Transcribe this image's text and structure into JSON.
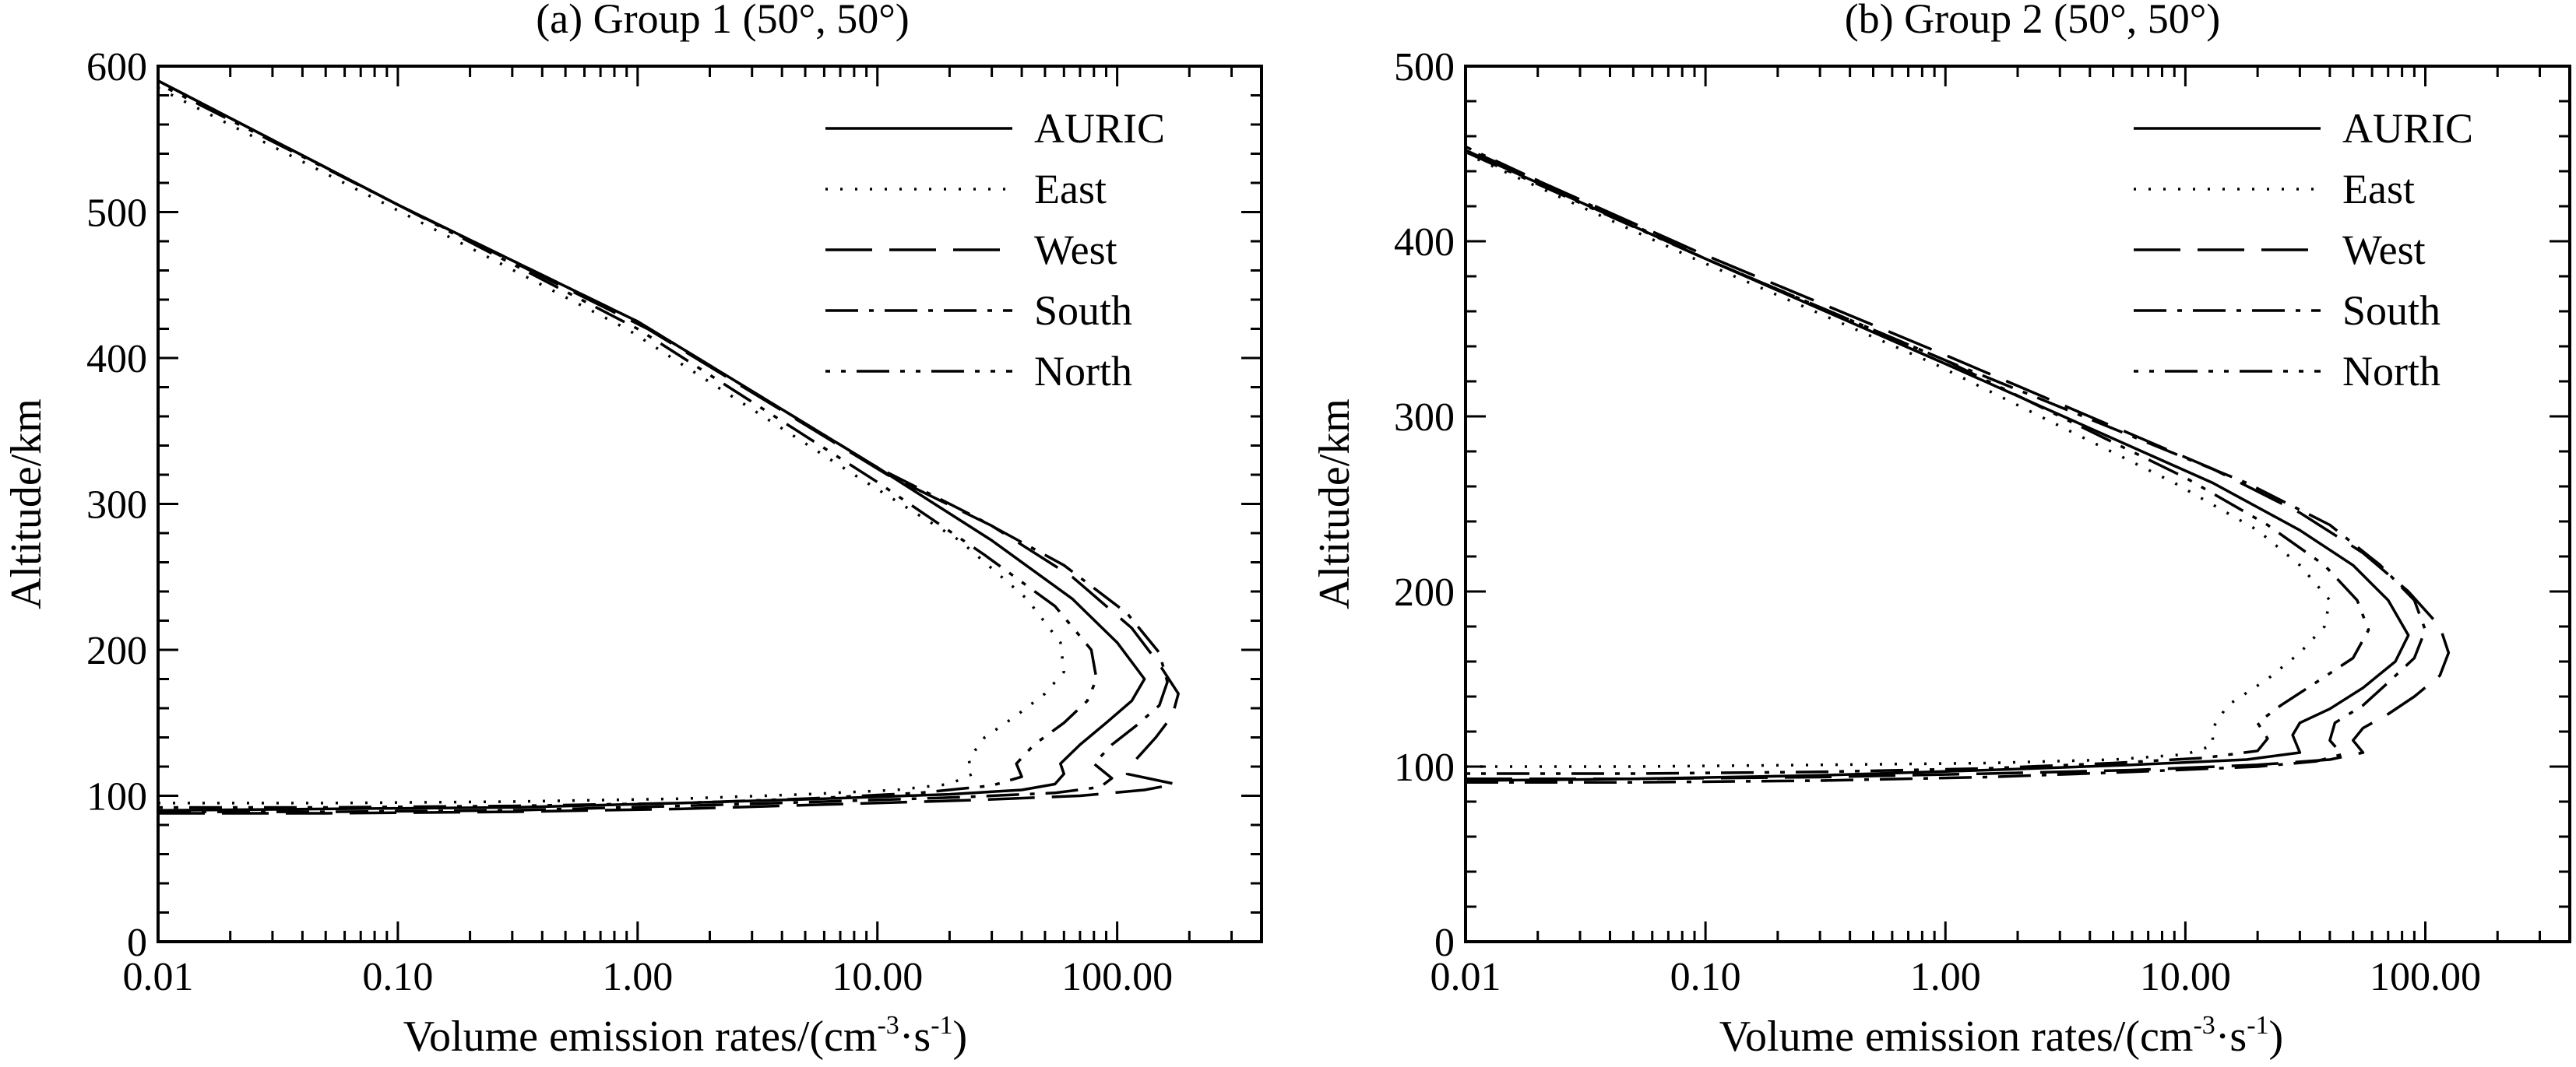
{
  "chart_data": [
    {
      "type": "line",
      "title": "(a) Group 1 (50°, 50°)",
      "xlabel": "Volume emission rates/(cm",
      "xlabel_unit_parts": [
        "-3",
        "·s",
        "-1",
        ")"
      ],
      "ylabel": "Altitude/km",
      "xscale": "log",
      "xlim": [
        0.01,
        400
      ],
      "ylim": [
        0,
        600
      ],
      "xticks": [
        0.01,
        0.1,
        1,
        10,
        100
      ],
      "xtick_labels": [
        "0.01",
        "0.10",
        "1.00",
        "10.00",
        "100.00"
      ],
      "yticks": [
        0,
        100,
        200,
        300,
        400,
        500,
        600
      ],
      "ytick_labels": [
        "0",
        "100",
        "200",
        "300",
        "400",
        "500",
        "600"
      ],
      "legend_position": "top-right",
      "series": [
        {
          "name": "AURIC",
          "style": "solid",
          "points": [
            [
              0.01,
              90
            ],
            [
              0.05,
              91
            ],
            [
              0.3,
              92
            ],
            [
              1.5,
              95
            ],
            [
              6,
              98
            ],
            [
              20,
              101
            ],
            [
              40,
              104
            ],
            [
              55,
              108
            ],
            [
              60,
              115
            ],
            [
              58,
              122
            ],
            [
              70,
              135
            ],
            [
              90,
              150
            ],
            [
              115,
              165
            ],
            [
              130,
              180
            ],
            [
              100,
              205
            ],
            [
              65,
              235
            ],
            [
              30,
              275
            ],
            [
              10,
              325
            ],
            [
              1,
              425
            ],
            [
              0.1,
              505
            ],
            [
              0.01,
              590
            ]
          ]
        },
        {
          "name": "East",
          "style": "dotted",
          "points": [
            [
              0.01,
              95
            ],
            [
              0.05,
              95
            ],
            [
              0.3,
              96
            ],
            [
              1.5,
              98
            ],
            [
              5,
              101
            ],
            [
              12,
              104
            ],
            [
              20,
              108
            ],
            [
              25,
              115
            ],
            [
              24,
              125
            ],
            [
              28,
              140
            ],
            [
              38,
              155
            ],
            [
              50,
              170
            ],
            [
              60,
              185
            ],
            [
              58,
              205
            ],
            [
              42,
              235
            ],
            [
              22,
              275
            ],
            [
              8,
              320
            ],
            [
              0.9,
              420
            ],
            [
              0.09,
              505
            ],
            [
              0.01,
              585
            ]
          ]
        },
        {
          "name": "West",
          "style": "long-dash",
          "points": [
            [
              0.01,
              88
            ],
            [
              0.05,
              88
            ],
            [
              0.3,
              89
            ],
            [
              1.5,
              91
            ],
            [
              6,
              94
            ],
            [
              25,
              97
            ],
            [
              70,
              100
            ],
            [
              130,
              104
            ],
            [
              175,
              108
            ],
            [
              110,
              115
            ],
            [
              120,
              125
            ],
            [
              145,
              140
            ],
            [
              170,
              155
            ],
            [
              180,
              170
            ],
            [
              150,
              190
            ],
            [
              115,
              215
            ],
            [
              65,
              250
            ],
            [
              30,
              285
            ],
            [
              11,
              320
            ],
            [
              1.1,
              420
            ],
            [
              0.1,
              505
            ],
            [
              0.01,
              590
            ]
          ]
        },
        {
          "name": "South",
          "style": "dash-dot",
          "points": [
            [
              0.01,
              89
            ],
            [
              0.05,
              89
            ],
            [
              0.3,
              90
            ],
            [
              1.5,
              93
            ],
            [
              6,
              96
            ],
            [
              22,
              99
            ],
            [
              55,
              102
            ],
            [
              85,
              106
            ],
            [
              95,
              112
            ],
            [
              80,
              122
            ],
            [
              95,
              135
            ],
            [
              120,
              148
            ],
            [
              150,
              162
            ],
            [
              162,
              178
            ],
            [
              150,
              198
            ],
            [
              110,
              225
            ],
            [
              60,
              258
            ],
            [
              25,
              292
            ],
            [
              10,
              325
            ],
            [
              1,
              425
            ],
            [
              0.1,
              505
            ],
            [
              0.01,
              590
            ]
          ]
        },
        {
          "name": "North",
          "style": "dash-dot-dot",
          "points": [
            [
              0.01,
              92
            ],
            [
              0.05,
              92
            ],
            [
              0.3,
              93
            ],
            [
              1.5,
              95
            ],
            [
              5,
              98
            ],
            [
              15,
              102
            ],
            [
              30,
              107
            ],
            [
              40,
              113
            ],
            [
              38,
              122
            ],
            [
              45,
              135
            ],
            [
              60,
              150
            ],
            [
              75,
              165
            ],
            [
              82,
              180
            ],
            [
              78,
              200
            ],
            [
              55,
              230
            ],
            [
              28,
              265
            ],
            [
              10,
              315
            ],
            [
              1,
              420
            ],
            [
              0.1,
              505
            ],
            [
              0.01,
              588
            ]
          ]
        }
      ]
    },
    {
      "type": "line",
      "title": "(b) Group 2 (50°, 50°)",
      "xlabel": "Volume emission rates/(cm",
      "xlabel_unit_parts": [
        "-3",
        "·s",
        "-1",
        ")"
      ],
      "ylabel": "Altitude/km",
      "xscale": "log",
      "xlim": [
        0.01,
        400
      ],
      "ylim": [
        0,
        500
      ],
      "xticks": [
        0.01,
        0.1,
        1,
        10,
        100
      ],
      "xtick_labels": [
        "0.01",
        "0.10",
        "1.00",
        "10.00",
        "100.00"
      ],
      "yticks": [
        0,
        100,
        200,
        300,
        400,
        500
      ],
      "ytick_labels": [
        "0",
        "100",
        "200",
        "300",
        "400",
        "500"
      ],
      "legend_position": "top-right",
      "series": [
        {
          "name": "AURIC",
          "style": "solid",
          "points": [
            [
              0.01,
              92
            ],
            [
              0.05,
              93
            ],
            [
              0.3,
              95
            ],
            [
              1.5,
              98
            ],
            [
              6,
              101
            ],
            [
              18,
              104
            ],
            [
              30,
              108
            ],
            [
              28,
              118
            ],
            [
              30,
              125
            ],
            [
              40,
              133
            ],
            [
              55,
              145
            ],
            [
              75,
              160
            ],
            [
              85,
              175
            ],
            [
              70,
              195
            ],
            [
              50,
              215
            ],
            [
              30,
              235
            ],
            [
              13,
              262
            ],
            [
              1,
              330
            ],
            [
              0.1,
              390
            ],
            [
              0.01,
              452
            ]
          ]
        },
        {
          "name": "East",
          "style": "dotted",
          "points": [
            [
              0.01,
              100
            ],
            [
              0.05,
              100
            ],
            [
              0.3,
              101
            ],
            [
              1.5,
              102
            ],
            [
              5,
              104
            ],
            [
              10,
              107
            ],
            [
              13,
              112
            ],
            [
              13,
              122
            ],
            [
              15,
              135
            ],
            [
              22,
              150
            ],
            [
              30,
              165
            ],
            [
              38,
              180
            ],
            [
              40,
              195
            ],
            [
              30,
              215
            ],
            [
              20,
              235
            ],
            [
              9,
              262
            ],
            [
              0.9,
              330
            ],
            [
              0.09,
              390
            ],
            [
              0.01,
              450
            ]
          ]
        },
        {
          "name": "West",
          "style": "long-dash",
          "points": [
            [
              0.01,
              93
            ],
            [
              0.05,
              93
            ],
            [
              0.3,
              94
            ],
            [
              1.5,
              96
            ],
            [
              6,
              98
            ],
            [
              20,
              101
            ],
            [
              40,
              104
            ],
            [
              55,
              108
            ],
            [
              50,
              115
            ],
            [
              55,
              122
            ],
            [
              70,
              130
            ],
            [
              90,
              140
            ],
            [
              115,
              152
            ],
            [
              125,
              165
            ],
            [
              115,
              180
            ],
            [
              85,
              200
            ],
            [
              55,
              222
            ],
            [
              30,
              245
            ],
            [
              13,
              270
            ],
            [
              1,
              335
            ],
            [
              0.1,
              392
            ],
            [
              0.01,
              453
            ]
          ]
        },
        {
          "name": "South",
          "style": "dash-dot",
          "points": [
            [
              0.01,
              91
            ],
            [
              0.05,
              91
            ],
            [
              0.3,
              92
            ],
            [
              1.5,
              94
            ],
            [
              6,
              97
            ],
            [
              20,
              100
            ],
            [
              35,
              103
            ],
            [
              45,
              107
            ],
            [
              40,
              115
            ],
            [
              42,
              125
            ],
            [
              55,
              135
            ],
            [
              70,
              148
            ],
            [
              90,
              162
            ],
            [
              100,
              178
            ],
            [
              90,
              195
            ],
            [
              65,
              215
            ],
            [
              40,
              238
            ],
            [
              18,
              262
            ],
            [
              1,
              332
            ],
            [
              0.1,
              390
            ],
            [
              0.01,
              454
            ]
          ]
        },
        {
          "name": "North",
          "style": "dash-dot-dot",
          "points": [
            [
              0.01,
              96
            ],
            [
              0.05,
              96
            ],
            [
              0.3,
              97
            ],
            [
              1.5,
              99
            ],
            [
              5,
              102
            ],
            [
              12,
              105
            ],
            [
              20,
              109
            ],
            [
              22,
              116
            ],
            [
              20,
              125
            ],
            [
              25,
              135
            ],
            [
              35,
              148
            ],
            [
              50,
              162
            ],
            [
              58,
              178
            ],
            [
              52,
              195
            ],
            [
              38,
              215
            ],
            [
              22,
              238
            ],
            [
              10,
              265
            ],
            [
              1,
              332
            ],
            [
              0.1,
              390
            ],
            [
              0.01,
              451
            ]
          ]
        }
      ]
    }
  ]
}
